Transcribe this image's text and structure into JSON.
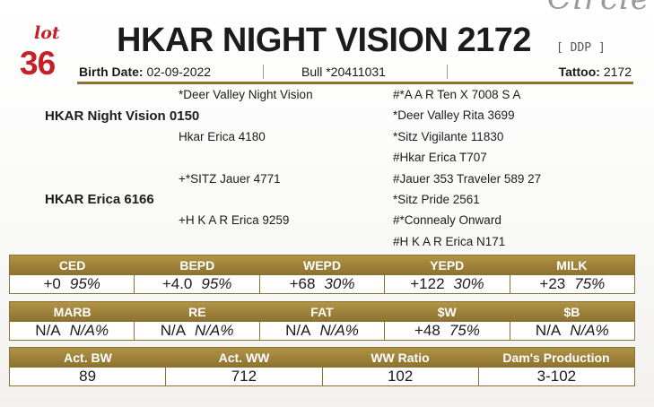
{
  "header": {
    "lot_word": "lot",
    "lot_number": "36",
    "title": "HKAR NIGHT VISION 2172",
    "title_tag": "[ DDP ]",
    "corner_script": "Circle"
  },
  "info": {
    "birth_label": "Birth Date:",
    "birth_value": "02-09-2022",
    "bull_text": "Bull *20411031",
    "tattoo_label": "Tattoo:",
    "tattoo_value": "2172"
  },
  "pedigree": {
    "sire": "HKAR Night Vision 0150",
    "dam": "HKAR Erica 6166",
    "sire_sire": "*Deer Valley Night Vision",
    "sire_dam": "Hkar Erica 4180",
    "dam_sire": "+*SITZ Jauer 4771",
    "dam_dam": "+H K A R Erica 9259",
    "ggp": [
      "#*A A R Ten X 7008 S A",
      "*Deer Valley Rita 3699",
      "*Sitz Vigilante 11830",
      "#Hkar Erica T707",
      "#Jauer 353 Traveler 589 27",
      "*Sitz Pride 2561",
      "#*Connealy Onward",
      "#H K A R Erica N171"
    ]
  },
  "epd1": {
    "headers": [
      "CED",
      "BEPD",
      "WEPD",
      "YEPD",
      "MILK"
    ],
    "cells": [
      {
        "value": "+0",
        "acc": "95%"
      },
      {
        "value": "+4.0",
        "acc": "95%"
      },
      {
        "value": "+68",
        "acc": "30%"
      },
      {
        "value": "+122",
        "acc": "30%"
      },
      {
        "value": "+23",
        "acc": "75%"
      }
    ]
  },
  "epd2": {
    "headers": [
      "MARB",
      "RE",
      "FAT",
      "$W",
      "$B"
    ],
    "cells": [
      {
        "value": "N/A",
        "acc": "N/A%"
      },
      {
        "value": "N/A",
        "acc": "N/A%"
      },
      {
        "value": "N/A",
        "acc": "N/A%"
      },
      {
        "value": "+48",
        "acc": "75%"
      },
      {
        "value": "N/A",
        "acc": "N/A%"
      }
    ]
  },
  "actual": {
    "headers": [
      "Act. BW",
      "Act. WW",
      "WW Ratio",
      "Dam's Production"
    ],
    "values": [
      "89",
      "712",
      "102",
      "3-102"
    ]
  }
}
